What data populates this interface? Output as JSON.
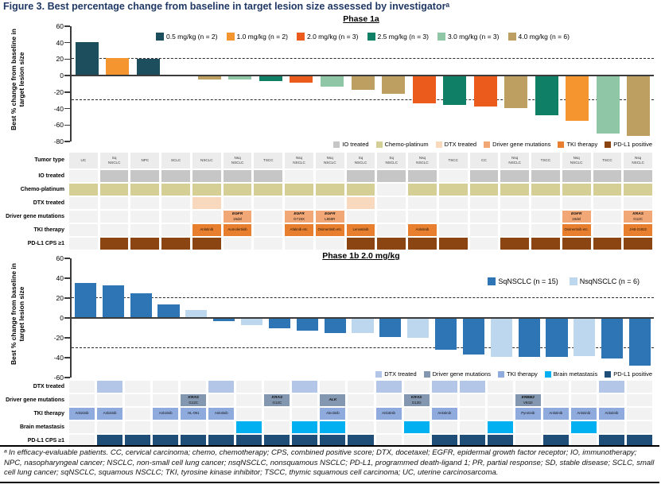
{
  "figure_title": "Figure 3. Best percentage change from baseline in target lesion size assessed by investigatorᵃ",
  "footnote": "ᵃ In efficacy-evaluable patients. CC, cervical carcinoma; chemo, chemotherapy; CPS, combined positive score; DTX, docetaxel; EGFR, epidermal growth factor receptor; IO, immunotherapy; NPC, nasopharyngeal cancer; NSCLC, non-small cell lung cancer; nsqNSCLC, nonsquamous NSCLC; PD-L1, programmed death-ligand 1; PR, partial response; SD, stable disease; SCLC, small cell lung cancer; sqNSCLC, squamous NSCLC; TKI, tyrosine kinase inhibitor; TSCC, thymic squamous cell carcinoma; UC, uterine carcinosarcoma.",
  "chart_data": [
    {
      "id": "phase1a",
      "type": "bar",
      "title": "Phase 1a",
      "ylabel": "Best % change from baseline in target lesion size",
      "ylim": [
        -80,
        60
      ],
      "yticks": [
        60,
        40,
        20,
        0,
        -20,
        -40,
        -60,
        -80
      ],
      "ref_lines": [
        20,
        -30
      ],
      "grid": false,
      "legend_position": "top-center",
      "legend": [
        {
          "key": "0.5",
          "label": "0.5 mg/kg (n = 2)",
          "color": "#1C4E5E"
        },
        {
          "key": "1.0",
          "label": "1.0 mg/kg (n = 2)",
          "color": "#F5952F"
        },
        {
          "key": "2.0",
          "label": "2.0 mg/kg (n = 3)",
          "color": "#EA5B1C"
        },
        {
          "key": "2.5",
          "label": "2.5 mg/kg (n = 3)",
          "color": "#0F7F66"
        },
        {
          "key": "3.0",
          "label": "3.0 mg/kg (n = 3)",
          "color": "#8FC6A5"
        },
        {
          "key": "4.0",
          "label": "4.0 mg/kg (n = 6)",
          "color": "#BD9F62"
        }
      ],
      "categories": [
        "UC",
        "Sq NSCLC",
        "NPC",
        "SCLC",
        "NSCLC",
        "Nsq NSCLC",
        "TSCC",
        "Nsq NSCLC",
        "Nsq NSCLC",
        "Sq NSCLC",
        "Sq NSCLC",
        "Nsq NSCLC",
        "TSCC",
        "CC",
        "Nsq NSCLC",
        "TSCC",
        "Nsq NSCLC",
        "TSCC",
        "Nsq NSCLC"
      ],
      "values": [
        41,
        21,
        20,
        0,
        -5,
        -5,
        -7,
        -9,
        -13,
        -17,
        -22,
        -34,
        -36,
        -38,
        -39,
        -48,
        -55,
        -70,
        -73
      ],
      "groups": [
        "0.5",
        "1.0",
        "0.5",
        "4.0",
        "4.0",
        "3.0",
        "2.5",
        "2.0",
        "3.0",
        "4.0",
        "4.0",
        "2.0",
        "2.5",
        "2.0",
        "4.0",
        "2.5",
        "1.0",
        "3.0",
        "4.0"
      ],
      "annotation_legend": [
        {
          "label": "IO treated",
          "color": "#C6C6C6"
        },
        {
          "label": "Chemo-platinum",
          "color": "#D5CE95"
        },
        {
          "label": "DTX treated",
          "color": "#F9D9BE"
        },
        {
          "label": "Driver gene mutations",
          "color": "#F2A876"
        },
        {
          "label": "TKI therapy",
          "color": "#E87F2E"
        },
        {
          "label": "PD-L1 positive",
          "color": "#8A4512"
        }
      ],
      "empty_cell_color": "#F2F2F2",
      "table": {
        "rows": [
          {
            "label": "Tumor type",
            "type": "header",
            "cells": [
              "UC",
              "Sq NSCLC",
              "NPC",
              "SCLC",
              "NSCLC",
              "Nsq NSCLC",
              "TSCC",
              "Nsq NSCLC",
              "Nsq NSCLC",
              "Sq NSCLC",
              "Sq NSCLC",
              "Nsq NSCLC",
              "TSCC",
              "CC",
              "Nsq NSCLC",
              "TSCC",
              "Nsq NSCLC",
              "TSCC",
              "Nsq NSCLC"
            ]
          },
          {
            "label": "IO treated",
            "type": "flag",
            "color": "#C6C6C6",
            "cells": [
              0,
              1,
              1,
              1,
              1,
              1,
              1,
              0,
              0,
              1,
              1,
              1,
              0,
              1,
              1,
              1,
              1,
              1,
              1
            ]
          },
          {
            "label": "Chemo-platinum",
            "type": "flag",
            "color": "#D5CE95",
            "cells": [
              1,
              1,
              1,
              1,
              1,
              1,
              1,
              1,
              1,
              1,
              0,
              1,
              1,
              1,
              1,
              1,
              1,
              1,
              1
            ]
          },
          {
            "label": "DTX treated",
            "type": "flag",
            "color": "#F9D9BE",
            "cells": [
              0,
              0,
              0,
              0,
              1,
              0,
              0,
              0,
              0,
              1,
              0,
              0,
              0,
              0,
              0,
              0,
              0,
              0,
              0
            ]
          },
          {
            "label": "Driver gene mutations",
            "type": "gene",
            "color": "#F2A876",
            "cells": [
              "",
              "",
              "",
              "",
              "",
              "EGFR|19del",
              "",
              "EGFR|G719X",
              "EGFR|L858R",
              "",
              "",
              "",
              "",
              "",
              "",
              "",
              "EGFR|19del",
              "",
              "KRAS|G12C"
            ]
          },
          {
            "label": "TKI therapy",
            "type": "drug",
            "color": "#E87F2E",
            "cells": [
              "",
              "",
              "",
              "",
              "Anlotinib",
              "Aumolertinib",
              "",
              "Afatinib etc.",
              "Osimertinib etc.",
              "Lenvatinib",
              "",
              "Anlotinib",
              "",
              "",
              "",
              "",
              "Osimertinib etc.",
              "",
              "JAB-21822"
            ]
          },
          {
            "label": "PD-L1 CPS ≥1",
            "type": "flag",
            "color": "#8A4512",
            "cells": [
              0,
              1,
              1,
              1,
              1,
              0,
              0,
              0,
              0,
              1,
              1,
              1,
              1,
              0,
              1,
              1,
              1,
              1,
              1
            ]
          }
        ]
      }
    },
    {
      "id": "phase1b",
      "type": "bar",
      "title": "Phase 1b 2.0 mg/kg",
      "ylabel": "Best % change from baseline in target lesion size",
      "ylim": [
        -60,
        60
      ],
      "yticks": [
        60,
        40,
        20,
        0,
        -20,
        -40,
        -60
      ],
      "ref_lines": [
        20,
        -30
      ],
      "grid": false,
      "legend_position": "top-right",
      "legend": [
        {
          "key": "sq",
          "label": "SqNSCLC (n = 15)",
          "color": "#2E75B6"
        },
        {
          "key": "nsq",
          "label": "NsqNSCLC (n = 6)",
          "color": "#BDD7EE"
        }
      ],
      "values": [
        35,
        33,
        25,
        14,
        8,
        -3,
        -7,
        -10,
        -13,
        -15,
        -15,
        -19,
        -20,
        -32,
        -37,
        -39,
        -39,
        -39,
        -38,
        -41,
        -48
      ],
      "groups": [
        "sq",
        "sq",
        "sq",
        "sq",
        "nsq",
        "sq",
        "nsq",
        "sq",
        "sq",
        "sq",
        "nsq",
        "sq",
        "nsq",
        "sq",
        "sq",
        "nsq",
        "sq",
        "sq",
        "nsq",
        "sq",
        "sq"
      ],
      "annotation_legend": [
        {
          "label": "DTX treated",
          "color": "#B4C6E7"
        },
        {
          "label": "Driver gene mutations",
          "color": "#8497B0"
        },
        {
          "label": "TKI therapy",
          "color": "#8FAADC"
        },
        {
          "label": "Brain metastasis",
          "color": "#00B0F0"
        },
        {
          "label": "PD-L1 positive",
          "color": "#1F4E79"
        }
      ],
      "empty_cell_color": "#F2F2F2",
      "table": {
        "rows": [
          {
            "label": "DTX treated",
            "type": "flag",
            "color": "#B4C6E7",
            "cells": [
              0,
              1,
              0,
              0,
              0,
              1,
              0,
              0,
              1,
              0,
              0,
              1,
              0,
              1,
              1,
              0,
              0,
              0,
              0,
              1,
              0
            ]
          },
          {
            "label": "Driver gene mutations",
            "type": "gene",
            "color": "#8497B0",
            "cells": [
              "",
              "",
              "",
              "",
              "KRAS|G12C",
              "",
              "",
              "KRAS|G12C",
              "",
              "ALK",
              "",
              "",
              "KRAS|G12D",
              "",
              "",
              "",
              "ERBB2|V842I",
              "",
              "",
              "",
              ""
            ]
          },
          {
            "label": "TKI therapy",
            "type": "drug",
            "color": "#8FAADC",
            "cells": [
              "Anlotinib",
              "Anlotinib",
              "",
              "Anlotinib",
              "HL-091",
              "Anlotinib",
              "",
              "",
              "",
              "Alectinib",
              "",
              "Anlotinib",
              "",
              "Anlotinib",
              "",
              "",
              "Pyrotinib",
              "Anlotinib",
              "Anlotinib",
              "Anlotinib",
              ""
            ]
          },
          {
            "label": "Brain metastasis",
            "type": "flag",
            "color": "#00B0F0",
            "cells": [
              0,
              0,
              0,
              0,
              0,
              0,
              1,
              0,
              1,
              1,
              0,
              0,
              1,
              0,
              0,
              1,
              0,
              0,
              1,
              0,
              0
            ]
          },
          {
            "label": "PD-L1 CPS ≥1",
            "type": "flag",
            "color": "#1F4E79",
            "cells": [
              0,
              1,
              1,
              1,
              1,
              1,
              1,
              1,
              1,
              1,
              1,
              0,
              0,
              1,
              1,
              1,
              0,
              1,
              0,
              1,
              1
            ]
          }
        ]
      }
    }
  ]
}
